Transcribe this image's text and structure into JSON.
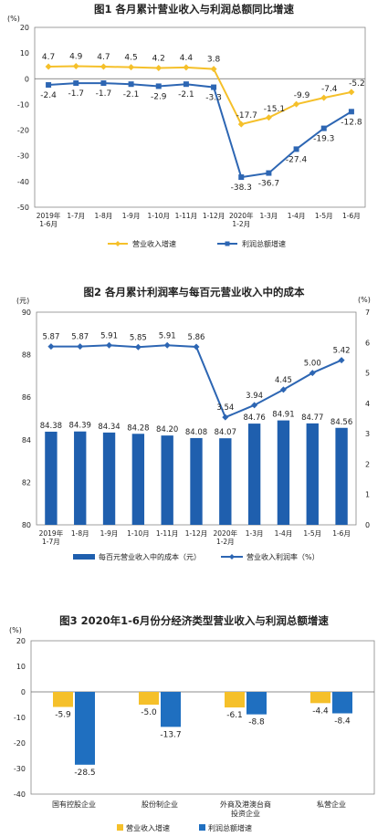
{
  "chart_data": [
    {
      "type": "line",
      "title": "图1 各月累计营业收入与利润总额同比增速",
      "ylabel": "(%)",
      "categories": [
        "2019年\n1-6月",
        "1-7月",
        "1-8月",
        "1-9月",
        "1-10月",
        "1-11月",
        "1-12月",
        "2020年\n1-2月",
        "1-3月",
        "1-4月",
        "1-5月",
        "1-6月"
      ],
      "ylim": [
        -50,
        20
      ],
      "yticks": [
        20,
        10,
        0,
        -10,
        -20,
        -30,
        -40,
        -50
      ],
      "series": [
        {
          "name": "营业收入增速",
          "color": "#f5c02a",
          "values": [
            4.7,
            4.9,
            4.7,
            4.5,
            4.2,
            4.4,
            3.8,
            -17.7,
            -15.1,
            -9.9,
            -7.4,
            -5.2
          ]
        },
        {
          "name": "利润总额增速",
          "color": "#2d66b3",
          "values": [
            -2.4,
            -1.7,
            -1.7,
            -2.1,
            -2.9,
            -2.1,
            -3.3,
            -38.3,
            -36.7,
            -27.4,
            -19.3,
            -12.8
          ]
        }
      ],
      "legend_position": "bottom"
    },
    {
      "type": "bar+line",
      "title": "图2 各月累计利润率与每百元营业收入中的成本",
      "ylabel": "(元)",
      "y2label": "(%)",
      "categories": [
        "2019年\n1-7月",
        "1-8月",
        "1-9月",
        "1-10月",
        "1-11月",
        "1-12月",
        "2020年\n1-2月",
        "1-3月",
        "1-4月",
        "1-5月",
        "1-6月"
      ],
      "ylim": [
        80,
        90
      ],
      "yticks": [
        90,
        88,
        86,
        84,
        82,
        80
      ],
      "y2lim": [
        0,
        7
      ],
      "y2ticks": [
        7,
        6,
        5,
        4,
        3,
        2,
        1,
        0
      ],
      "series": [
        {
          "name": "每百元营业收入中的成本（元）",
          "kind": "bar",
          "axis": "left",
          "color": "#1f5fae",
          "values": [
            84.38,
            84.39,
            84.34,
            84.28,
            84.2,
            84.08,
            84.07,
            84.76,
            84.91,
            84.77,
            84.56
          ]
        },
        {
          "name": "营业收入利润率（%）",
          "kind": "line",
          "axis": "right",
          "color": "#2d66b3",
          "values": [
            5.87,
            5.87,
            5.91,
            5.85,
            5.91,
            5.86,
            3.54,
            3.94,
            4.45,
            5.0,
            5.42
          ]
        }
      ],
      "legend_position": "bottom"
    },
    {
      "type": "bar",
      "title": "图3 2020年1-6月份分经济类型营业收入与利润总额增速",
      "ylabel": "(%)",
      "categories": [
        "国有控股企业",
        "股份制企业",
        "外商及港澳台商\n投资企业",
        "私营企业"
      ],
      "ylim": [
        -40,
        20
      ],
      "yticks": [
        20,
        10,
        0,
        -10,
        -20,
        -30,
        -40
      ],
      "series": [
        {
          "name": "营业收入增速",
          "color": "#f5c02a",
          "values": [
            -5.9,
            -5.0,
            -6.1,
            -4.4
          ]
        },
        {
          "name": "利润总额增速",
          "color": "#1f6fc0",
          "values": [
            -28.5,
            -13.7,
            -8.8,
            -8.4
          ]
        }
      ],
      "legend_position": "bottom"
    }
  ]
}
